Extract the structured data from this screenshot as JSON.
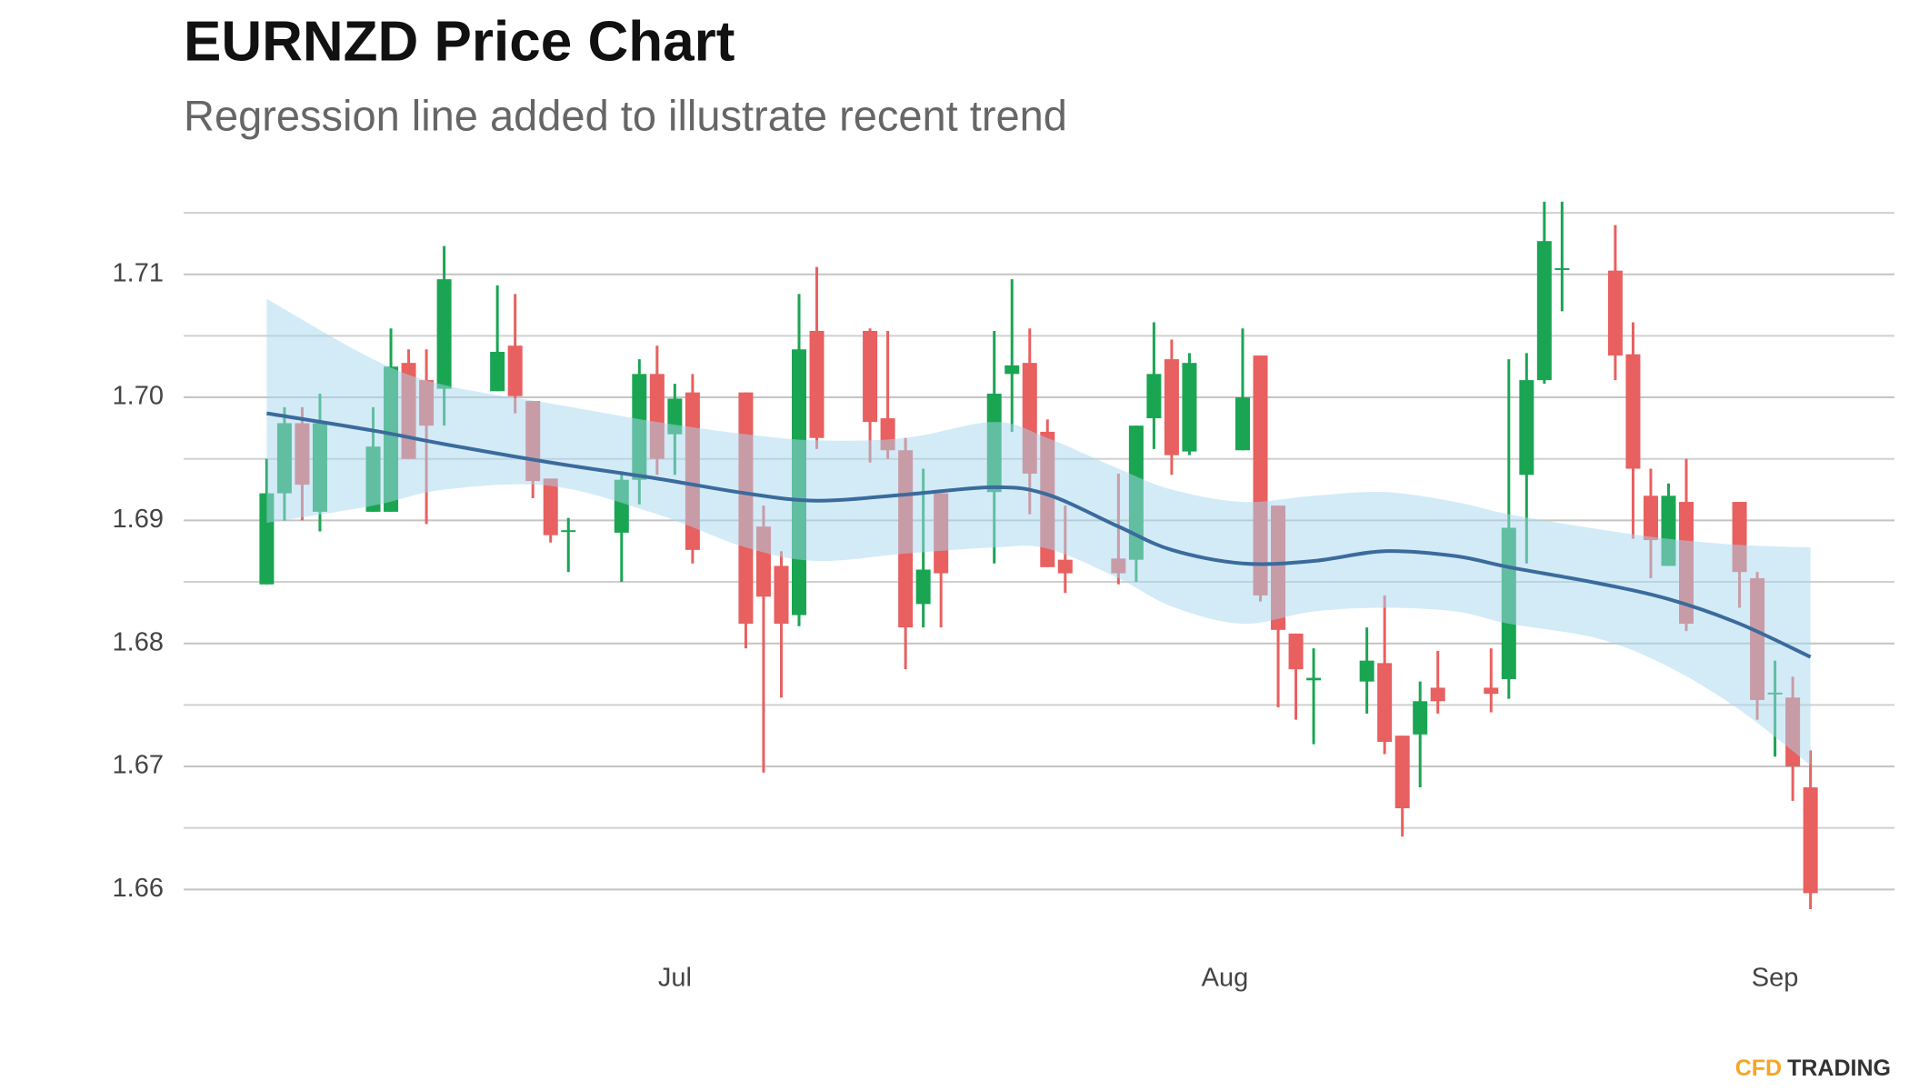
{
  "chart_data": {
    "type": "candlestick",
    "title": "EURNZD Price Chart",
    "subtitle": "Regression line added to illustrate recent trend",
    "categories": [
      null,
      null,
      null,
      null,
      null,
      null,
      null,
      null,
      null,
      null,
      null,
      null,
      null,
      null,
      null,
      null,
      null,
      null,
      null,
      null,
      null,
      null,
      null,
      "Jul",
      null,
      null,
      null,
      null,
      null,
      null,
      null,
      null,
      null,
      null,
      null,
      null,
      null,
      null,
      null,
      null,
      null,
      null,
      null,
      null,
      null,
      null,
      null,
      null,
      null,
      null,
      null,
      null,
      null,
      null,
      "Aug",
      null,
      null,
      null,
      null,
      null,
      null,
      null,
      null,
      null,
      null,
      null,
      null,
      null,
      null,
      null,
      null,
      null,
      null,
      null,
      null,
      null,
      null,
      null,
      null,
      null,
      null,
      null,
      null,
      null,
      null,
      "Sep",
      null,
      null
    ],
    "open": [
      1.6848,
      1.6922,
      1.6979,
      1.6907,
      null,
      null,
      1.6907,
      1.6907,
      1.7028,
      1.7014,
      1.7007,
      null,
      null,
      1.7005,
      1.7042,
      1.6997,
      1.6934,
      1.6891,
      null,
      null,
      1.689,
      1.6933,
      1.7019,
      1.697,
      1.7004,
      null,
      null,
      1.7004,
      1.6895,
      1.6863,
      1.6823,
      1.7054,
      null,
      null,
      1.7054,
      1.6983,
      1.6957,
      1.6832,
      1.6922,
      null,
      null,
      1.6923,
      1.7019,
      1.7028,
      1.6972,
      1.6868,
      null,
      null,
      1.6869,
      1.6868,
      1.6983,
      1.7031,
      1.6956,
      null,
      null,
      1.6957,
      1.7034,
      1.6912,
      1.6808,
      1.677,
      null,
      null,
      1.6769,
      1.6784,
      1.6725,
      1.6726,
      1.6764,
      null,
      null,
      1.6764,
      1.6771,
      1.6937,
      1.7014,
      1.7104,
      null,
      null,
      1.7103,
      1.7035,
      1.692,
      1.6863,
      1.6915,
      null,
      null,
      1.6915,
      1.6853,
      1.6759,
      1.6756,
      1.6683
    ],
    "high": [
      1.695,
      1.6992,
      1.6992,
      1.7003,
      null,
      null,
      1.6992,
      1.7056,
      1.7039,
      1.7039,
      1.7123,
      null,
      null,
      1.7091,
      1.7084,
      1.6997,
      1.6934,
      1.6902,
      null,
      null,
      1.694,
      1.7031,
      1.7042,
      1.7011,
      1.7019,
      null,
      null,
      1.7004,
      1.6912,
      1.6875,
      1.7084,
      1.7106,
      null,
      null,
      1.7056,
      1.7054,
      1.6967,
      1.6942,
      1.6922,
      null,
      null,
      1.7054,
      1.7096,
      1.7056,
      1.6982,
      1.6912,
      null,
      null,
      1.6938,
      1.6977,
      1.7061,
      1.7047,
      1.7036,
      null,
      null,
      1.7056,
      1.7034,
      1.6912,
      1.6808,
      1.6796,
      null,
      null,
      1.6813,
      1.6839,
      1.6725,
      1.6769,
      1.6794,
      null,
      null,
      1.6796,
      1.7031,
      1.7036,
      1.7159,
      1.7159,
      null,
      null,
      1.714,
      1.7061,
      1.6942,
      1.693,
      1.695,
      null,
      null,
      1.6915,
      1.6858,
      1.6786,
      1.6773,
      1.6713
    ],
    "low": [
      1.6848,
      1.69,
      1.69,
      1.6891,
      null,
      null,
      1.6907,
      1.6907,
      1.695,
      1.6897,
      1.6977,
      null,
      null,
      1.7005,
      1.6987,
      1.6918,
      1.6882,
      1.6858,
      null,
      null,
      1.685,
      1.6913,
      1.6937,
      1.6937,
      1.6865,
      null,
      null,
      1.6796,
      1.6695,
      1.6756,
      1.6814,
      1.6958,
      null,
      null,
      1.6947,
      1.695,
      1.6779,
      1.6813,
      1.6813,
      null,
      null,
      1.6865,
      1.6972,
      1.6905,
      1.6862,
      1.6841,
      null,
      null,
      1.6848,
      1.685,
      1.6958,
      1.6937,
      1.6953,
      null,
      null,
      1.6957,
      1.6834,
      1.6748,
      1.6738,
      1.6718,
      null,
      null,
      1.6743,
      1.671,
      1.6643,
      1.6683,
      1.6743,
      null,
      null,
      1.6744,
      1.6755,
      1.6865,
      1.7011,
      1.707,
      null,
      null,
      1.7014,
      1.6885,
      1.6853,
      1.6863,
      1.681,
      null,
      null,
      1.6829,
      1.6738,
      1.6708,
      1.6672,
      1.6584
    ],
    "close": [
      1.6922,
      1.6979,
      1.6929,
      1.6979,
      null,
      null,
      1.696,
      1.7025,
      1.695,
      1.6977,
      1.7096,
      null,
      null,
      1.7037,
      1.7001,
      1.6932,
      1.6888,
      1.6892,
      null,
      null,
      1.6933,
      1.7019,
      1.695,
      1.6999,
      1.6876,
      null,
      null,
      1.6816,
      1.6838,
      1.6816,
      1.7039,
      1.6967,
      null,
      null,
      1.698,
      1.6957,
      1.6813,
      1.686,
      1.6857,
      null,
      null,
      1.7003,
      1.7026,
      1.6938,
      1.6862,
      1.6857,
      null,
      null,
      1.6857,
      1.6977,
      1.7019,
      1.6953,
      1.7028,
      null,
      null,
      1.7,
      1.6839,
      1.6811,
      1.6779,
      1.6772,
      null,
      null,
      1.6786,
      1.672,
      1.6666,
      1.6753,
      1.6753,
      null,
      null,
      1.6759,
      1.6894,
      1.7014,
      1.7127,
      1.7105,
      null,
      null,
      1.7034,
      1.6942,
      1.6884,
      1.692,
      1.6816,
      null,
      null,
      1.6858,
      1.6754,
      1.676,
      1.67,
      1.6597
    ],
    "up_color": "#1aa553",
    "down_color": "#e8605f",
    "trend": {
      "color": "#3b6b9c",
      "band_color": "#a8d8f0",
      "x": [
        0,
        6,
        10,
        16,
        22,
        27,
        31,
        36,
        41,
        44,
        48,
        51,
        55,
        59,
        63,
        67,
        70,
        75,
        79,
        83,
        87
      ],
      "values": [
        1.6987,
        1.6973,
        1.6962,
        1.6947,
        1.6934,
        1.6922,
        1.6916,
        1.6921,
        1.6927,
        1.6921,
        1.6895,
        1.6876,
        1.6865,
        1.6867,
        1.6875,
        1.6871,
        1.6862,
        1.6849,
        1.6836,
        1.6816,
        1.6789
      ],
      "upper": [
        1.708,
        1.7031,
        1.701,
        1.6995,
        1.698,
        1.697,
        1.6965,
        1.6967,
        1.698,
        1.6967,
        1.6942,
        1.6925,
        1.6915,
        1.692,
        1.6923,
        1.6915,
        1.6905,
        1.6893,
        1.6885,
        1.688,
        1.6878
      ],
      "lower": [
        1.6898,
        1.6912,
        1.6925,
        1.6928,
        1.6905,
        1.6878,
        1.6867,
        1.6873,
        1.6878,
        1.6877,
        1.6853,
        1.683,
        1.6816,
        1.6826,
        1.6829,
        1.6826,
        1.6816,
        1.6804,
        1.6781,
        1.6746,
        1.6701
      ]
    },
    "ylim": [
      1.655,
      1.717
    ],
    "yticks": [
      1.66,
      1.67,
      1.68,
      1.69,
      {
        "value": 1.7,
        "label": "1.70"
      },
      1.71
    ],
    "minor_yticks": [
      1.665,
      1.675,
      1.685,
      1.695,
      1.705,
      1.715
    ],
    "grid": true
  },
  "brand": {
    "part1": "CFD",
    "part2": "TRADING"
  }
}
